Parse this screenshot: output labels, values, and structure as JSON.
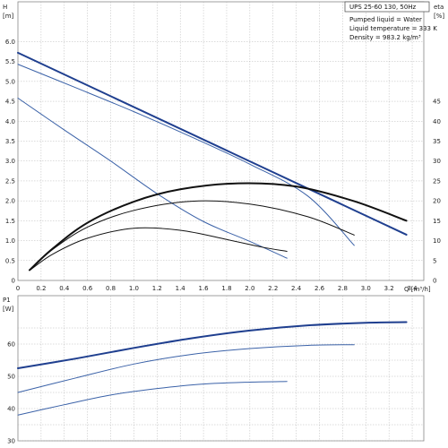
{
  "chart_data": [
    {
      "id": "head",
      "type": "line",
      "title": "UPS 25-60 130, 50Hz",
      "annotations": [
        "Pumped liquid = Water",
        "Liquid temperature = 333 K",
        "Density = 983.2 kg/m³"
      ],
      "xlabel": "Q [m³/h]",
      "ylabel_left": "H\n[m]",
      "ylabel_right": "eta\n[%]",
      "xlim": [
        0,
        3.5
      ],
      "ylim_left": [
        0,
        7.0
      ],
      "ylim_right": [
        0,
        70
      ],
      "x_ticks": [
        "0",
        "0.2",
        "0.4",
        "0.6",
        "0.8",
        "1.0",
        "1.2",
        "1.4",
        "1.6",
        "1.8",
        "2.0",
        "2.2",
        "2.4",
        "2.6",
        "2.8",
        "3.0",
        "3.2",
        "3.4"
      ],
      "y_ticks_left": [
        "0",
        "0.5",
        "1.0",
        "1.5",
        "2.0",
        "2.5",
        "3.0",
        "3.5",
        "4.0",
        "4.5",
        "5.0",
        "5.5",
        "6.0"
      ],
      "y_ticks_right": [
        "0",
        "5",
        "10",
        "15",
        "20",
        "25",
        "30",
        "35",
        "40",
        "45"
      ],
      "grid": true,
      "series": [
        {
          "color": "#1f3f8f",
          "width": 2.0,
          "axis": "left",
          "points": [
            [
              0,
              5.72
            ],
            [
              3.35,
              1.15
            ]
          ]
        },
        {
          "color": "#3b62a8",
          "width": 1.0,
          "axis": "left",
          "points": [
            [
              0,
              5.43
            ],
            [
              0.5,
              4.84
            ],
            [
              1.0,
              4.24
            ],
            [
              1.5,
              3.6
            ],
            [
              2.0,
              2.92
            ],
            [
              2.5,
              2.12
            ],
            [
              2.9,
              0.88
            ]
          ]
        },
        {
          "color": "#3b62a8",
          "width": 1.0,
          "axis": "left",
          "points": [
            [
              0,
              4.58
            ],
            [
              0.4,
              3.78
            ],
            [
              0.8,
              3.0
            ],
            [
              1.2,
              2.18
            ],
            [
              1.6,
              1.48
            ],
            [
              2.0,
              0.98
            ],
            [
              2.32,
              0.56
            ]
          ]
        },
        {
          "color": "#111111",
          "width": 2.0,
          "axis": "right",
          "points": [
            [
              0.1,
              2.6
            ],
            [
              0.3,
              8.0
            ],
            [
              0.6,
              14.5
            ],
            [
              1.0,
              19.8
            ],
            [
              1.4,
              22.9
            ],
            [
              1.9,
              24.4
            ],
            [
              2.4,
              23.6
            ],
            [
              2.9,
              19.9
            ],
            [
              3.35,
              15.0
            ]
          ]
        },
        {
          "color": "#111111",
          "width": 1.0,
          "axis": "right",
          "points": [
            [
              0.1,
              2.6
            ],
            [
              0.3,
              7.8
            ],
            [
              0.6,
              13.4
            ],
            [
              1.0,
              17.6
            ],
            [
              1.5,
              19.9
            ],
            [
              2.0,
              19.2
            ],
            [
              2.5,
              16.0
            ],
            [
              2.9,
              11.4
            ]
          ]
        },
        {
          "color": "#111111",
          "width": 1.0,
          "axis": "right",
          "points": [
            [
              0.1,
              2.5
            ],
            [
              0.3,
              6.6
            ],
            [
              0.6,
              10.6
            ],
            [
              1.0,
              13.1
            ],
            [
              1.4,
              12.6
            ],
            [
              1.8,
              10.3
            ],
            [
              2.1,
              8.4
            ],
            [
              2.32,
              7.3
            ]
          ]
        }
      ]
    },
    {
      "id": "power",
      "type": "line",
      "ylabel_left": "P1\n[W]",
      "xlim": [
        0,
        3.5
      ],
      "ylim_left": [
        30,
        75
      ],
      "y_ticks_left": [
        "30",
        "40",
        "50",
        "60"
      ],
      "grid": true,
      "series": [
        {
          "color": "#1f3f8f",
          "width": 2.0,
          "axis": "left",
          "points": [
            [
              0,
              52.5
            ],
            [
              0.5,
              55.5
            ],
            [
              1.0,
              58.8
            ],
            [
              1.5,
              61.8
            ],
            [
              2.0,
              64.2
            ],
            [
              2.5,
              65.8
            ],
            [
              3.0,
              66.6
            ],
            [
              3.35,
              66.8
            ]
          ]
        },
        {
          "color": "#3b62a8",
          "width": 1.0,
          "axis": "left",
          "points": [
            [
              0,
              45.0
            ],
            [
              0.5,
              49.5
            ],
            [
              1.0,
              53.8
            ],
            [
              1.5,
              56.8
            ],
            [
              2.0,
              58.6
            ],
            [
              2.5,
              59.6
            ],
            [
              2.9,
              59.8
            ]
          ]
        },
        {
          "color": "#3b62a8",
          "width": 1.0,
          "axis": "left",
          "points": [
            [
              0,
              38.0
            ],
            [
              0.4,
              41.2
            ],
            [
              0.8,
              44.2
            ],
            [
              1.2,
              46.2
            ],
            [
              1.6,
              47.6
            ],
            [
              2.0,
              48.2
            ],
            [
              2.32,
              48.4
            ]
          ]
        }
      ]
    }
  ]
}
